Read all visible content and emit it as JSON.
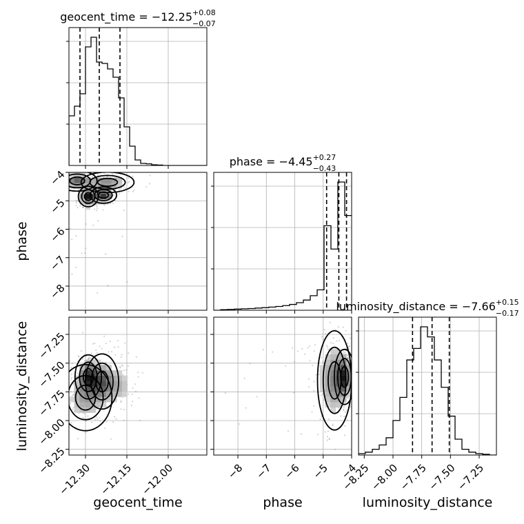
{
  "chart_data": {
    "type": "corner",
    "parameters": [
      {
        "key": "geocent_time",
        "axis_label": "geocent_time",
        "title": {
          "prefix": "geocent_time = ",
          "value": "−12.25",
          "plus": "+0.08",
          "minus": "−0.07"
        },
        "range": [
          -12.36,
          -11.86
        ],
        "ticks": [
          -12.3,
          -12.15,
          -12.0
        ],
        "tick_labels": [
          "−12.30",
          "−12.15",
          "−12.00"
        ],
        "quantiles": [
          -12.32,
          -12.25,
          -12.175
        ],
        "hist": {
          "edges_start": -12.36,
          "bin_width": 0.02,
          "counts": [
            0.36,
            0.43,
            0.52,
            0.86,
            0.93,
            0.75,
            0.74,
            0.7,
            0.64,
            0.49,
            0.28,
            0.14,
            0.04,
            0.015,
            0.012,
            0.005,
            0.003,
            0,
            0,
            0,
            0,
            0,
            0,
            0,
            0
          ]
        }
      },
      {
        "key": "phase",
        "axis_label": "phase",
        "title": {
          "prefix": "phase = ",
          "value": "−4.45",
          "plus": "+0.27",
          "minus": "−0.43"
        },
        "range": [
          -8.85,
          -4.0
        ],
        "ticks": [
          -8,
          -7,
          -6,
          -5,
          -4
        ],
        "tick_labels": [
          "−8",
          "−7",
          "−6",
          "−5",
          "−4"
        ],
        "quantiles": [
          -4.88,
          -4.45,
          -4.18
        ],
        "hist": {
          "edges_start": -8.85,
          "bin_width": 0.2425,
          "counts": [
            0,
            0.004,
            0.006,
            0.008,
            0.01,
            0.012,
            0.015,
            0.018,
            0.022,
            0.026,
            0.032,
            0.04,
            0.052,
            0.07,
            0.1,
            0.14,
            0.58,
            0.42,
            0.88,
            0.65
          ]
        }
      },
      {
        "key": "luminosity_distance",
        "axis_label": "luminosity_distance",
        "title": {
          "prefix": "luminosity_distance = ",
          "value": "−7.66",
          "plus": "+0.15",
          "minus": "−0.17"
        },
        "range": [
          -8.3,
          -7.1
        ],
        "ticks": [
          -8.25,
          -8.0,
          -7.75,
          -7.5,
          -7.25
        ],
        "tick_labels": [
          "−8.25",
          "−8.00",
          "−7.75",
          "−7.50",
          "−7.25"
        ],
        "quantiles": [
          -7.83,
          -7.66,
          -7.51
        ],
        "hist": {
          "edges_start": -8.3,
          "bin_width": 0.06,
          "counts": [
            0.01,
            0.02,
            0.04,
            0.07,
            0.12,
            0.24,
            0.4,
            0.66,
            0.74,
            0.89,
            0.82,
            0.66,
            0.47,
            0.27,
            0.11,
            0.04,
            0.02,
            0.01,
            0.005,
            0
          ]
        }
      }
    ],
    "joint_modes": {
      "phase|geocent_time": [
        {
          "x": -12.29,
          "y": -4.85,
          "sx": 0.015,
          "sy": 0.15,
          "w": 1.0
        },
        {
          "x": -12.235,
          "y": -4.8,
          "sx": 0.02,
          "sy": 0.12,
          "w": 0.9
        },
        {
          "x": -12.33,
          "y": -4.3,
          "sx": 0.03,
          "sy": 0.15,
          "w": 0.7
        },
        {
          "x": -12.22,
          "y": -4.35,
          "sx": 0.04,
          "sy": 0.15,
          "w": 0.55
        },
        {
          "x": -12.27,
          "y": -5.8,
          "sx": 0.05,
          "sy": 1.0,
          "w": 0.2
        }
      ],
      "luminosity_distance|geocent_time": [
        {
          "x": -12.29,
          "y": -7.62,
          "sx": 0.02,
          "sy": 0.08,
          "w": 1.0
        },
        {
          "x": -12.24,
          "y": -7.66,
          "sx": 0.025,
          "sy": 0.1,
          "w": 0.8
        },
        {
          "x": -12.3,
          "y": -7.8,
          "sx": 0.04,
          "sy": 0.12,
          "w": 0.5
        },
        {
          "x": -12.18,
          "y": -7.7,
          "sx": 0.03,
          "sy": 0.1,
          "w": 0.4
        }
      ],
      "luminosity_distance|phase": [
        {
          "x": -4.25,
          "y": -7.62,
          "sx": 0.15,
          "sy": 0.1,
          "w": 1.0
        },
        {
          "x": -4.6,
          "y": -7.65,
          "sx": 0.25,
          "sy": 0.18,
          "w": 0.6
        },
        {
          "x": -5.5,
          "y": -7.6,
          "sx": 0.9,
          "sy": 0.2,
          "w": 0.15
        }
      ]
    },
    "grid": true,
    "colors": {
      "line": "#000000",
      "points": "#808080",
      "grid": "#b0b0b0"
    }
  }
}
